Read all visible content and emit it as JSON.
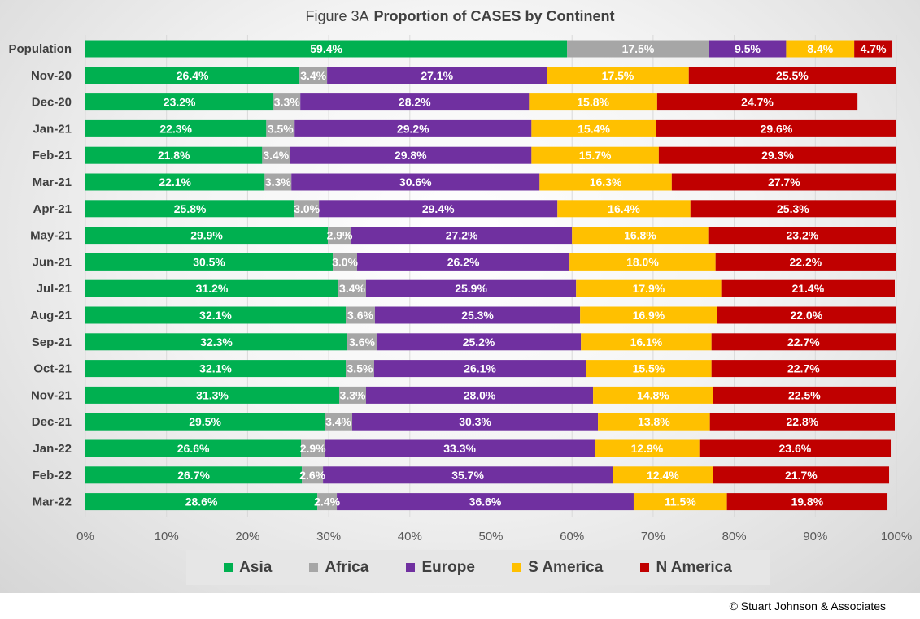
{
  "title": {
    "figure": "Figure  3A",
    "main": "Proportion of CASES by Continent"
  },
  "credit": "© Stuart Johnson & Associates",
  "chart_data": {
    "type": "bar",
    "orientation": "horizontal",
    "stacked": "percent",
    "xlim": [
      0,
      100
    ],
    "x_ticks": [
      "0%",
      "10%",
      "20%",
      "30%",
      "40%",
      "50%",
      "60%",
      "70%",
      "80%",
      "90%",
      "100%"
    ],
    "legend_position": "bottom",
    "grid": true,
    "categories": [
      "Population",
      "Nov-20",
      "Dec-20",
      "Jan-21",
      "Feb-21",
      "Mar-21",
      "Apr-21",
      "May-21",
      "Jun-21",
      "Jul-21",
      "Aug-21",
      "Sep-21",
      "Oct-21",
      "Nov-21",
      "Dec-21",
      "Jan-22",
      "Feb-22",
      "Mar-22"
    ],
    "series": [
      {
        "name": "Asia",
        "color": "#00b050",
        "values": [
          59.4,
          26.4,
          23.2,
          22.3,
          21.8,
          22.1,
          25.8,
          29.9,
          30.5,
          31.2,
          32.1,
          32.3,
          32.1,
          31.3,
          29.5,
          26.6,
          26.7,
          28.6
        ]
      },
      {
        "name": "Africa",
        "color": "#a6a6a6",
        "values": [
          17.5,
          3.4,
          3.3,
          3.5,
          3.4,
          3.3,
          3.0,
          2.9,
          3.0,
          3.4,
          3.6,
          3.6,
          3.5,
          3.3,
          3.4,
          2.9,
          2.6,
          2.4
        ]
      },
      {
        "name": "Europe",
        "color": "#7030a0",
        "values": [
          9.5,
          27.1,
          28.2,
          29.2,
          29.8,
          30.6,
          29.4,
          27.2,
          26.2,
          25.9,
          25.3,
          25.2,
          26.1,
          28.0,
          30.3,
          33.3,
          35.7,
          36.6
        ]
      },
      {
        "name": "S America",
        "color": "#ffc000",
        "values": [
          8.4,
          17.5,
          15.8,
          15.4,
          15.7,
          16.3,
          16.4,
          16.8,
          18.0,
          17.9,
          16.9,
          16.1,
          15.5,
          14.8,
          13.8,
          12.9,
          12.4,
          11.5
        ]
      },
      {
        "name": "N America",
        "color": "#c00000",
        "values": [
          4.7,
          25.5,
          24.7,
          29.6,
          29.3,
          27.7,
          25.3,
          23.2,
          22.2,
          21.4,
          22.0,
          22.7,
          22.7,
          22.5,
          22.8,
          23.6,
          21.7,
          19.8
        ]
      }
    ]
  }
}
